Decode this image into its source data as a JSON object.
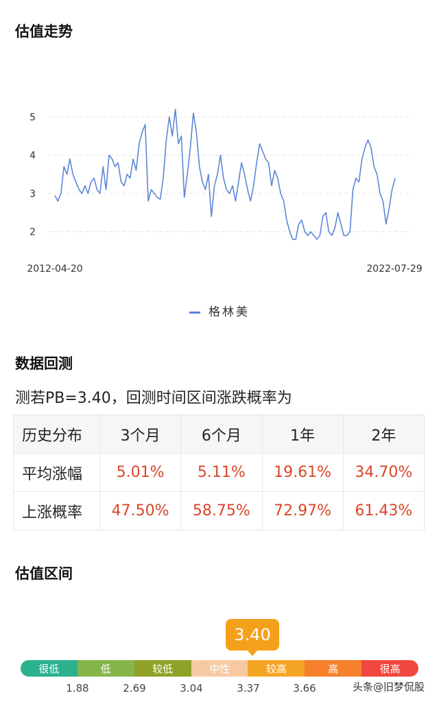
{
  "sections": {
    "trend_title": "估值走势",
    "backtest_title": "数据回测",
    "range_title": "估值区间"
  },
  "chart_data": {
    "type": "line",
    "title": "",
    "xlabel": "",
    "ylabel": "",
    "x_start_label": "2012-04-20",
    "x_end_label": "2022-07-29",
    "yticks": [
      "5",
      "4",
      "3",
      "2"
    ],
    "ylim": [
      1.6,
      5.4
    ],
    "grid": true,
    "legend_position": "bottom-center",
    "color": "#5b86d6",
    "series": [
      {
        "name": "格林美",
        "values": [
          2.95,
          2.8,
          3.0,
          3.7,
          3.5,
          3.9,
          3.5,
          3.3,
          3.1,
          3.0,
          3.2,
          3.0,
          3.3,
          3.4,
          3.1,
          3.0,
          3.7,
          3.1,
          4.0,
          3.9,
          3.7,
          3.8,
          3.3,
          3.2,
          3.5,
          3.4,
          3.9,
          3.6,
          4.3,
          4.6,
          4.8,
          2.8,
          3.1,
          3.0,
          2.9,
          2.85,
          3.4,
          4.4,
          5.0,
          4.5,
          5.2,
          4.3,
          4.5,
          2.9,
          3.5,
          4.2,
          5.1,
          4.6,
          3.7,
          3.3,
          3.1,
          3.5,
          2.4,
          3.2,
          3.5,
          4.0,
          3.4,
          3.1,
          3.0,
          3.2,
          2.8,
          3.3,
          3.8,
          3.5,
          3.1,
          2.8,
          3.2,
          3.8,
          4.3,
          4.1,
          3.9,
          3.8,
          3.2,
          3.6,
          3.4,
          3.0,
          2.8,
          2.3,
          2.0,
          1.8,
          1.8,
          2.2,
          2.3,
          2.0,
          1.9,
          2.0,
          1.9,
          1.8,
          1.9,
          2.4,
          2.5,
          2.0,
          1.9,
          2.1,
          2.5,
          2.2,
          1.9,
          1.9,
          2.0,
          3.1,
          3.4,
          3.3,
          3.9,
          4.2,
          4.4,
          4.2,
          3.7,
          3.5,
          3.0,
          2.8,
          2.2,
          2.6,
          3.1,
          3.4
        ]
      }
    ]
  },
  "backtest": {
    "subtitle": "测若PB=3.40，回测时间区间涨跌概率为",
    "headers": [
      "历史分布",
      "3个月",
      "6个月",
      "1年",
      "2年"
    ],
    "rows": [
      {
        "label": "平均涨幅",
        "values": [
          "5.01%",
          "5.11%",
          "19.61%",
          "34.70%"
        ]
      },
      {
        "label": "上涨概率",
        "values": [
          "47.50%",
          "58.75%",
          "72.97%",
          "61.43%"
        ]
      }
    ]
  },
  "range": {
    "current_value": "3.40",
    "current_level": 0.52,
    "segments": [
      {
        "label": "很低",
        "color": "#2bb18e"
      },
      {
        "label": "低",
        "color": "#86b54a"
      },
      {
        "label": "较低",
        "color": "#8fa227"
      },
      {
        "label": "中性",
        "color": "#f7c9a3"
      },
      {
        "label": "较高",
        "color": "#f5a524"
      },
      {
        "label": "高",
        "color": "#f6802c"
      },
      {
        "label": "很高",
        "color": "#f0473e"
      }
    ],
    "ticks": [
      "1.88",
      "2.69",
      "3.04",
      "3.37",
      "3.66"
    ]
  },
  "watermark": "头条@旧梦侃股"
}
